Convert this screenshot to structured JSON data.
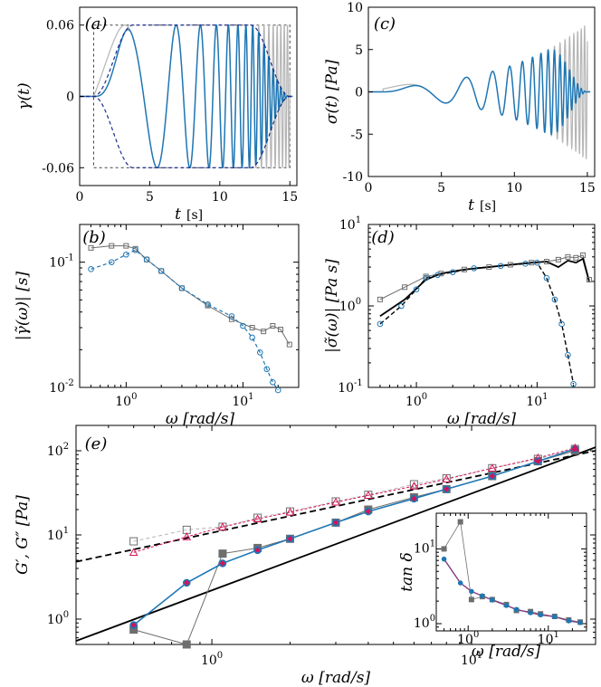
{
  "colors": {
    "blue": "#1f77b4",
    "blue_dark": "#0e5aa8",
    "gray": "#b5b5b5",
    "dark_gray": "#6e6e6e",
    "red": "#d4145a",
    "black": "#000000",
    "navy": "#1b2a8a"
  },
  "chart_data": [
    {
      "panel": "(a)",
      "type": "line",
      "xlabel_var": "t",
      "xlabel_unit": "[s]",
      "ylabel": "γ(t)",
      "xlim": [
        0,
        15.5
      ],
      "ylim": [
        -0.075,
        0.075
      ],
      "xticks": [
        "0",
        "5",
        "10",
        "15"
      ],
      "yticks": [
        "-0.06",
        "0",
        "0.06"
      ],
      "amplitude": 0.06,
      "t_start": 1,
      "t_end": 15,
      "sweep_freq_start_rad_s": 0.5,
      "sweep_freq_end_rad_s": 30,
      "series": [
        {
          "name": "chirp input (gray)",
          "color": "gray"
        },
        {
          "name": "tapered chirp (blue)",
          "color": "blue"
        },
        {
          "name": "taper envelope (dashed)",
          "color": "navy"
        }
      ]
    },
    {
      "panel": "(b)",
      "type": "line",
      "xlabel": "ω [rad/s]",
      "ylabel": "|γ̃(ω)| [s]",
      "xscale": "log",
      "yscale": "log",
      "xlim": [
        0.4,
        30
      ],
      "ylim": [
        0.01,
        0.2
      ],
      "xticks": [
        {
          "base": "10",
          "exp": "0"
        },
        {
          "base": "10",
          "exp": "1"
        }
      ],
      "yticks": [
        {
          "base": "10",
          "exp": "-2"
        },
        {
          "base": "10",
          "exp": "-1"
        }
      ],
      "series": [
        {
          "name": "gray squares",
          "x": [
            0.5,
            0.75,
            1.0,
            1.2,
            1.5,
            2.0,
            3.0,
            5.0,
            8.0,
            12,
            15,
            18,
            21,
            25
          ],
          "y": [
            0.13,
            0.135,
            0.135,
            0.128,
            0.105,
            0.085,
            0.062,
            0.045,
            0.035,
            0.03,
            0.028,
            0.031,
            0.029,
            0.022
          ]
        },
        {
          "name": "blue circles",
          "x": [
            0.5,
            0.75,
            1.0,
            1.2,
            1.5,
            2.0,
            3.0,
            5.0,
            8.0,
            10,
            12,
            14,
            16,
            18,
            20
          ],
          "y": [
            0.088,
            0.1,
            0.115,
            0.125,
            0.105,
            0.085,
            0.062,
            0.046,
            0.037,
            0.031,
            0.025,
            0.019,
            0.014,
            0.011,
            0.0095
          ]
        }
      ]
    },
    {
      "panel": "(c)",
      "type": "line",
      "xlabel_var": "t",
      "xlabel_unit": "[s]",
      "ylabel": "σ(t) [Pa]",
      "xlim": [
        0,
        15.5
      ],
      "ylim": [
        -10,
        10
      ],
      "xticks": [
        "0",
        "5",
        "10",
        "15"
      ],
      "yticks": [
        "-10",
        "-5",
        "0",
        "5",
        "10"
      ],
      "series": [
        {
          "name": "stress response (gray)",
          "color": "gray"
        },
        {
          "name": "tapered stress response (blue)",
          "color": "blue"
        }
      ]
    },
    {
      "panel": "(d)",
      "type": "line",
      "xlabel": "ω [rad/s]",
      "ylabel": "|σ̃(ω)| [Pa s]",
      "xscale": "log",
      "yscale": "log",
      "xlim": [
        0.4,
        30
      ],
      "ylim": [
        0.1,
        10
      ],
      "xticks": [
        {
          "base": "10",
          "exp": "0"
        },
        {
          "base": "10",
          "exp": "1"
        }
      ],
      "yticks": [
        {
          "base": "10",
          "exp": "-1"
        },
        {
          "base": "10",
          "exp": "0"
        },
        {
          "base": "10",
          "exp": "1"
        }
      ],
      "series": [
        {
          "name": "gray squares",
          "x": [
            0.5,
            0.8,
            1.2,
            1.6,
            2.5,
            4,
            6,
            9,
            12,
            15,
            18,
            21,
            24,
            27
          ],
          "y": [
            1.2,
            1.7,
            2.3,
            2.5,
            2.8,
            3.0,
            3.2,
            3.4,
            3.5,
            3.7,
            4.0,
            3.9,
            4.2,
            2.1
          ]
        },
        {
          "name": "black line",
          "x": [
            0.5,
            0.8,
            1.2,
            1.6,
            2.5,
            4,
            6,
            9,
            12,
            15,
            18,
            21,
            24,
            27
          ],
          "y": [
            0.75,
            1.2,
            2.1,
            2.5,
            2.8,
            3.0,
            3.2,
            3.4,
            3.5,
            3.0,
            3.6,
            3.4,
            3.8,
            2.0
          ]
        },
        {
          "name": "blue circles",
          "x": [
            0.5,
            0.75,
            1.0,
            1.2,
            1.5,
            2.0,
            3.0,
            5.0,
            8.0,
            10,
            12,
            14,
            16,
            18,
            20
          ],
          "y": [
            0.6,
            1.0,
            1.6,
            2.2,
            2.4,
            2.6,
            2.9,
            3.1,
            3.3,
            3.4,
            2.2,
            1.2,
            0.6,
            0.25,
            0.11
          ]
        }
      ]
    },
    {
      "panel": "(e)",
      "type": "line",
      "xlabel": "ω [rad/s]",
      "ylabel": "G′, G″ [Pa]",
      "xscale": "log",
      "yscale": "log",
      "xlim": [
        0.3,
        30
      ],
      "ylim": [
        0.5,
        200
      ],
      "xticks": [
        {
          "base": "10",
          "exp": "0"
        },
        {
          "base": "10",
          "exp": "1"
        }
      ],
      "yticks": [
        {
          "base": "10",
          "exp": "0"
        },
        {
          "base": "10",
          "exp": "1"
        },
        {
          "base": "10",
          "exp": "2"
        }
      ],
      "series": [
        {
          "name": "G' fit (black solid)",
          "x": [
            0.3,
            30
          ],
          "y": [
            0.55,
            110
          ]
        },
        {
          "name": "G'' fit (black dashed)",
          "x": [
            0.3,
            30
          ],
          "y": [
            4.8,
            100
          ]
        },
        {
          "name": "G' gray squares",
          "x": [
            0.5,
            0.8,
            1.1,
            1.5,
            2,
            3,
            4,
            6,
            8,
            12,
            18,
            25
          ],
          "y": [
            0.75,
            0.5,
            6.0,
            7.0,
            9.0,
            14,
            20,
            28,
            35,
            50,
            75,
            100
          ]
        },
        {
          "name": "G' blue/red",
          "x": [
            0.5,
            0.8,
            1.1,
            1.5,
            2,
            3,
            4,
            6,
            8,
            12,
            18,
            25
          ],
          "y": [
            0.85,
            2.7,
            4.6,
            6.6,
            9.0,
            14,
            19,
            27,
            35,
            50,
            75,
            105
          ]
        },
        {
          "name": "G'' gray open squares",
          "x": [
            0.5,
            0.8,
            1.1,
            1.5,
            2,
            3,
            4,
            6,
            8,
            12,
            18,
            25
          ],
          "y": [
            8.4,
            11.5,
            12.5,
            16,
            19,
            25,
            30,
            40,
            47,
            62,
            80,
            105
          ]
        },
        {
          "name": "G'' red open triangles",
          "x": [
            0.5,
            0.8,
            1.1,
            1.5,
            2,
            3,
            4,
            6,
            8,
            12,
            18,
            25
          ],
          "y": [
            6.2,
            9.5,
            12.4,
            15.5,
            18.6,
            24.5,
            29.5,
            38,
            46,
            62,
            82,
            108
          ]
        }
      ],
      "inset": {
        "ylabel": "tan δ",
        "xlabel": "ω [rad/s]",
        "xscale": "log",
        "yscale": "log",
        "xlim": [
          0.4,
          30
        ],
        "ylim": [
          0.8,
          30
        ],
        "xticks": [
          {
            "base": "10",
            "exp": "0"
          },
          {
            "base": "10",
            "exp": "1"
          }
        ],
        "yticks": [
          {
            "base": "10",
            "exp": "0"
          },
          {
            "base": "10",
            "exp": "1"
          }
        ],
        "series": [
          {
            "name": "gray squares",
            "x": [
              0.5,
              0.8,
              1.1,
              1.5,
              2,
              3,
              4,
              6,
              8,
              12,
              18,
              25
            ],
            "y": [
              10,
              23,
              2.1,
              2.3,
              2.1,
              1.8,
              1.5,
              1.45,
              1.35,
              1.25,
              1.12,
              1.05
            ]
          },
          {
            "name": "blue/red",
            "x": [
              0.5,
              0.8,
              1.1,
              1.5,
              2,
              3,
              4,
              6,
              8,
              12,
              18,
              25
            ],
            "y": [
              7.3,
              3.5,
              2.7,
              2.35,
              2.07,
              1.75,
              1.55,
              1.4,
              1.31,
              1.24,
              1.09,
              1.03
            ]
          }
        ]
      }
    }
  ]
}
